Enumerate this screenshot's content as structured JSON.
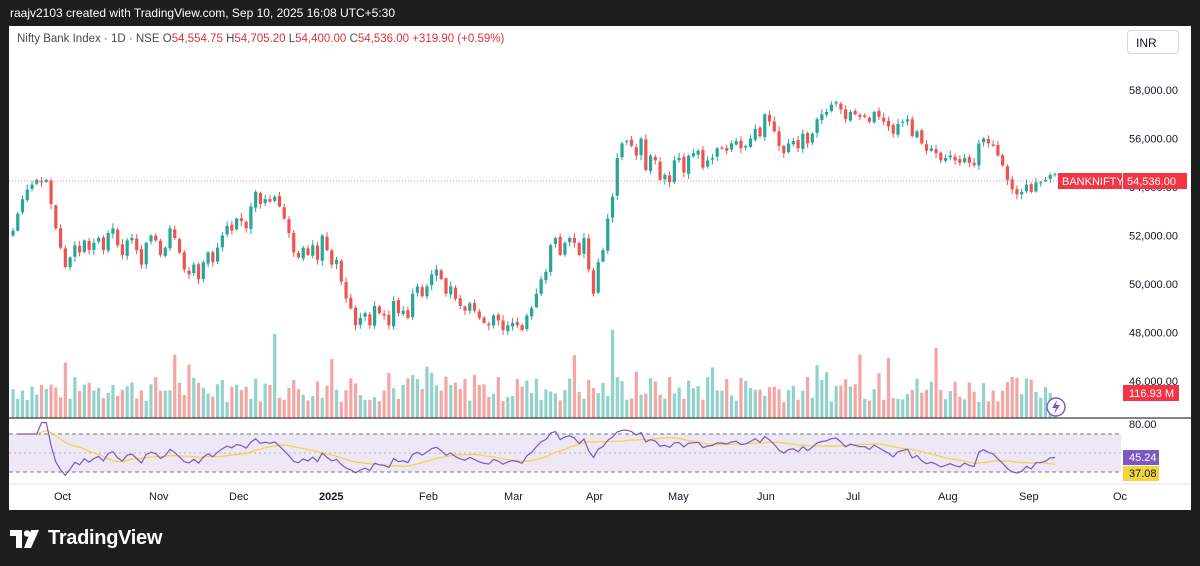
{
  "header": {
    "attribution": "raajv2103 created with TradingView.com, Sep 10, 2025 16:08 UTC+5:30"
  },
  "legend": {
    "symbol": "Nifty Bank Index · 1D · NSE",
    "o_label": "O",
    "o_value": "54,554.75",
    "h_label": "H",
    "h_value": "54,705.20",
    "l_label": "L",
    "l_value": "54,400.00",
    "c_label": "C",
    "c_value": "54,536.00",
    "change": "+319.90 (+0.59%)"
  },
  "currency": "INR",
  "footer": {
    "brand": "TradingView"
  },
  "colors": {
    "up": "#26a69a",
    "down": "#ef5350",
    "vol_up": "#92d2cc",
    "vol_down": "#f5a5a3",
    "rsi": "#7e57c2",
    "rsi_ma": "#f2d53c",
    "rsi_band": "#ede7f6",
    "price_tag": "#f23645"
  },
  "chart_data": [
    {
      "type": "candlestick",
      "title": "Nifty Bank Index · 1D · NSE",
      "y_ticks": [
        "58,000.00",
        "56,000.00",
        "54,000.00",
        "52,000.00",
        "50,000.00",
        "48,000.00",
        "46,000.00"
      ],
      "x_ticks": [
        "Oct",
        "Nov",
        "Dec",
        "2025",
        "Feb",
        "Mar",
        "Apr",
        "May",
        "Jun",
        "Jul",
        "Aug",
        "Sep",
        "Oc"
      ],
      "ylim": [
        45300,
        59800
      ],
      "last_price_label": "BANKNIFTY",
      "last_price": "54,536.00",
      "closes": [
        52200,
        52900,
        53500,
        53900,
        54100,
        54300,
        54200,
        54300,
        53300,
        52300,
        51500,
        50700,
        51100,
        51600,
        51300,
        51800,
        51400,
        51700,
        51900,
        51400,
        52100,
        52300,
        51600,
        51200,
        51800,
        51900,
        51400,
        50800,
        51700,
        52000,
        51800,
        51200,
        51500,
        52300,
        51900,
        51300,
        50600,
        50400,
        50800,
        50200,
        50900,
        51300,
        50900,
        51500,
        52000,
        52400,
        52200,
        52700,
        52600,
        52300,
        53200,
        53800,
        53300,
        53500,
        53400,
        53600,
        53200,
        52700,
        52100,
        51300,
        51100,
        51500,
        51200,
        51600,
        51000,
        52000,
        51400,
        50800,
        51000,
        50100,
        49400,
        49000,
        48300,
        48600,
        48800,
        48300,
        49100,
        48800,
        48700,
        48300,
        49300,
        48800,
        48900,
        48600,
        49600,
        49900,
        49500,
        49900,
        50400,
        50600,
        50200,
        49600,
        49900,
        49400,
        49100,
        48900,
        49200,
        48900,
        48600,
        48400,
        48300,
        48700,
        48500,
        48100,
        48300,
        48400,
        48300,
        48100,
        48700,
        49000,
        49600,
        50200,
        50500,
        51600,
        51900,
        51200,
        51700,
        51900,
        51700,
        51200,
        51900,
        50600,
        49600,
        50900,
        51400,
        52700,
        53600,
        55200,
        55800,
        55900,
        55700,
        55300,
        56000,
        54700,
        55300,
        55100,
        54300,
        54500,
        54200,
        55100,
        55200,
        54600,
        55300,
        55400,
        55500,
        54800,
        55100,
        55200,
        55600,
        55600,
        55500,
        55800,
        55900,
        55600,
        55700,
        56000,
        56400,
        56100,
        57000,
        56700,
        56300,
        55700,
        55400,
        55800,
        55900,
        55600,
        56200,
        55800,
        56200,
        56800,
        57000,
        57100,
        57400,
        57500,
        57200,
        56800,
        57100,
        57000,
        56900,
        56900,
        56700,
        57100,
        56900,
        56700,
        56500,
        56200,
        56600,
        56700,
        56800,
        56100,
        56300,
        55800,
        55500,
        55600,
        55400,
        55100,
        55200,
        55300,
        55100,
        55000,
        55200,
        55000,
        54900,
        55800,
        56000,
        55800,
        55700,
        55300,
        54900,
        54300,
        53900,
        53700,
        53800,
        54100,
        53800,
        54200,
        54200,
        54300,
        54500,
        54536
      ],
      "volume_ylim": [
        0,
        100
      ],
      "rsi": {
        "ylim": [
          20,
          85
        ],
        "upper": 70,
        "lower": 30,
        "tick": "80.00",
        "value": "45.24",
        "ma_value": "37.08"
      }
    }
  ],
  "volume_label": "116.93 M"
}
